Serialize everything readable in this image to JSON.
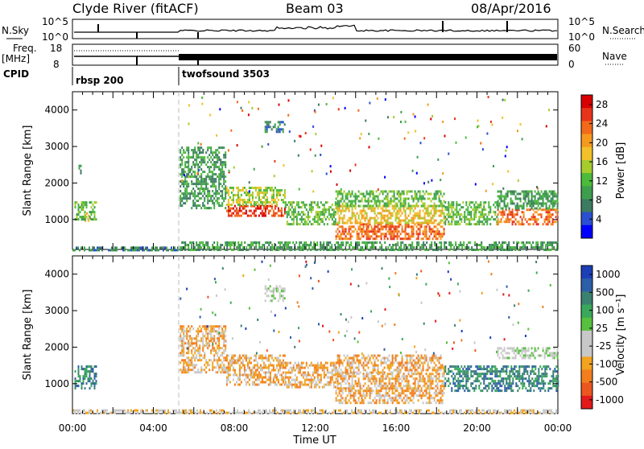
{
  "header": {
    "station": "Clyde River (fitACF)",
    "beam": "Beam 03",
    "date": "08/Apr/2016"
  },
  "top_panels": {
    "nsky_label": "N.Sky",
    "nsearch_label": "N.Search",
    "nsky_ticks": [
      "10^5",
      "10^0"
    ],
    "nsearch_ticks": [
      "10^5",
      "10^0"
    ],
    "freq_label": "Freq.",
    "freq_unit": "[MHz]",
    "freq_ticks": [
      "18",
      "8"
    ],
    "nave_label": "Nave",
    "nave_ticks": [
      "60",
      "0"
    ],
    "cpid_label": "CPID",
    "cpid_segments": [
      {
        "name": "rbsp 200",
        "start_hour": 0.0,
        "end_hour": 5.25
      },
      {
        "name": "twofsound 3503",
        "start_hour": 5.25,
        "end_hour": 24.0
      }
    ]
  },
  "colors": {
    "power": [
      "#0000ff",
      "#2a4fd0",
      "#3d7a62",
      "#3f9e4e",
      "#4dbb3a",
      "#a6cc2d",
      "#f2c12a",
      "#f59a1e",
      "#f26a1a",
      "#e8341a",
      "#d80000"
    ],
    "velocity": [
      "#1c3fb8",
      "#2d5fa8",
      "#3a8170",
      "#3aa85a",
      "#57c03f",
      "#c8c8c8",
      "#c8c8c8",
      "#f2a31f",
      "#f27e1d",
      "#ec5620",
      "#e31a1a"
    ]
  },
  "chart_data": [
    {
      "type": "heatmap",
      "title": "Power",
      "xlabel": "Time UT",
      "ylabel": "Slant Range [km]",
      "xlim": [
        0,
        24
      ],
      "ylim": [
        180,
        4500
      ],
      "x_ticks": [
        "00:00",
        "04:00",
        "08:00",
        "12:00",
        "16:00",
        "20:00",
        "00:00"
      ],
      "y_ticks": [
        1000,
        2000,
        3000,
        4000
      ],
      "colorbar": {
        "label": "Power [dB]",
        "ticks": [
          4,
          8,
          12,
          16,
          20,
          24,
          28
        ],
        "range": [
          0,
          30
        ]
      },
      "regions": [
        {
          "t": [
            0.6,
            0.9
          ],
          "r": [
            900,
            1200
          ],
          "value": 22
        },
        {
          "t": [
            0.1,
            1.2
          ],
          "r": [
            1000,
            1500
          ],
          "value": 12
        },
        {
          "t": [
            0.3,
            0.4
          ],
          "r": [
            2300,
            2500
          ],
          "value": 6
        },
        {
          "t": [
            0.0,
            5.3
          ],
          "r": [
            180,
            260
          ],
          "value": 6
        },
        {
          "t": [
            5.3,
            7.6
          ],
          "r": [
            1300,
            3000
          ],
          "value": 8
        },
        {
          "t": [
            7.6,
            10.5
          ],
          "r": [
            1100,
            1400
          ],
          "value": 26
        },
        {
          "t": [
            7.6,
            10.5
          ],
          "r": [
            1400,
            1900
          ],
          "value": 14
        },
        {
          "t": [
            9.5,
            10.5
          ],
          "r": [
            3400,
            3700
          ],
          "value": 6
        },
        {
          "t": [
            10.5,
            13.0
          ],
          "r": [
            900,
            1500
          ],
          "value": 12
        },
        {
          "t": [
            13.0,
            18.4
          ],
          "r": [
            500,
            900
          ],
          "value": 24
        },
        {
          "t": [
            13.0,
            18.4
          ],
          "r": [
            900,
            1400
          ],
          "value": 18
        },
        {
          "t": [
            13.0,
            18.4
          ],
          "r": [
            1400,
            1800
          ],
          "value": 12
        },
        {
          "t": [
            18.4,
            21.0
          ],
          "r": [
            900,
            1500
          ],
          "value": 12
        },
        {
          "t": [
            21.0,
            24.0
          ],
          "r": [
            900,
            1300
          ],
          "value": 24
        },
        {
          "t": [
            21.0,
            24.0
          ],
          "r": [
            1300,
            1800
          ],
          "value": 10
        },
        {
          "t": [
            5.3,
            24.0
          ],
          "r": [
            180,
            400
          ],
          "value": 8
        }
      ]
    },
    {
      "type": "heatmap",
      "title": "Velocity",
      "xlabel": "Time UT",
      "ylabel": "Slant Range [km]",
      "xlim": [
        0,
        24
      ],
      "ylim": [
        180,
        4500
      ],
      "x_ticks": [
        "00:00",
        "04:00",
        "08:00",
        "12:00",
        "16:00",
        "20:00",
        "00:00"
      ],
      "y_ticks": [
        1000,
        2000,
        3000,
        4000
      ],
      "colorbar": {
        "label": "Velocity [m s⁻¹]",
        "ticks": [
          1000,
          500,
          100,
          25,
          -25,
          -100,
          -500,
          -1000
        ]
      },
      "regions": [
        {
          "t": [
            0.1,
            1.2
          ],
          "r": [
            900,
            1500
          ],
          "value": 300
        },
        {
          "t": [
            5.3,
            7.6
          ],
          "r": [
            1300,
            2600
          ],
          "value": -300
        },
        {
          "t": [
            7.6,
            10.5
          ],
          "r": [
            1000,
            1800
          ],
          "value": -300
        },
        {
          "t": [
            9.5,
            10.5
          ],
          "r": [
            3300,
            3700
          ],
          "value": 0
        },
        {
          "t": [
            10.5,
            13.0
          ],
          "r": [
            900,
            1600
          ],
          "value": -300
        },
        {
          "t": [
            13.0,
            18.4
          ],
          "r": [
            500,
            1300
          ],
          "value": -400
        },
        {
          "t": [
            13.0,
            18.4
          ],
          "r": [
            1300,
            1800
          ],
          "value": -200
        },
        {
          "t": [
            18.4,
            24.0
          ],
          "r": [
            800,
            1500
          ],
          "value": 400
        },
        {
          "t": [
            21.0,
            24.0
          ],
          "r": [
            1700,
            2000
          ],
          "value": 0
        },
        {
          "t": [
            0.0,
            24.0
          ],
          "r": [
            180,
            300
          ],
          "value": -80
        }
      ]
    }
  ]
}
